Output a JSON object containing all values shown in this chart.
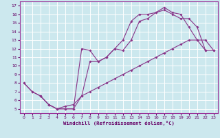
{
  "bg_color": "#cce8ee",
  "grid_color": "#ffffff",
  "line_color": "#883388",
  "xlabel": "Windchill (Refroidissement éolien,°C)",
  "xlim": [
    -0.5,
    23.5
  ],
  "ylim": [
    4.5,
    17.5
  ],
  "yticks": [
    5,
    6,
    7,
    8,
    9,
    10,
    11,
    12,
    13,
    14,
    15,
    16,
    17
  ],
  "xticks": [
    0,
    1,
    2,
    3,
    4,
    5,
    6,
    7,
    8,
    9,
    10,
    11,
    12,
    13,
    14,
    15,
    16,
    17,
    18,
    19,
    20,
    21,
    22,
    23
  ],
  "line_a_x": [
    0,
    1,
    2,
    3,
    4,
    5,
    6,
    7,
    8,
    9,
    10,
    11,
    12,
    13,
    14,
    15,
    16,
    17,
    18,
    19,
    20,
    21,
    22
  ],
  "line_a_y": [
    8,
    7,
    6.5,
    5.5,
    5,
    5,
    5,
    12,
    11.8,
    10.5,
    11,
    12,
    13,
    15.2,
    16,
    16.0,
    16.2,
    16.8,
    16.2,
    16.0,
    14.5,
    13,
    11.8
  ],
  "line_b_x": [
    0,
    1,
    2,
    3,
    4,
    5,
    6,
    7,
    8,
    9,
    10,
    11,
    12,
    13,
    14,
    15,
    16,
    17,
    18,
    19,
    20,
    21,
    22,
    23
  ],
  "line_b_y": [
    8,
    7,
    6.5,
    5.5,
    5,
    5,
    5,
    6.5,
    7.0,
    7.5,
    8.0,
    8.5,
    9.0,
    9.5,
    10.0,
    10.5,
    11.0,
    11.5,
    12.0,
    12.5,
    13.0,
    13.0,
    13.0,
    11.8
  ],
  "line_c_x": [
    2,
    3,
    4,
    5,
    6,
    7,
    8,
    9,
    10,
    11,
    12,
    13,
    14,
    15,
    16,
    17,
    18,
    19,
    20,
    21,
    22,
    23
  ],
  "line_c_y": [
    6.5,
    5.5,
    5.0,
    5.3,
    5.5,
    6.5,
    10.5,
    10.5,
    11.0,
    12.0,
    11.8,
    13.0,
    15.2,
    15.5,
    16.2,
    16.5,
    16.0,
    15.5,
    15.5,
    14.5,
    11.8,
    11.8
  ]
}
